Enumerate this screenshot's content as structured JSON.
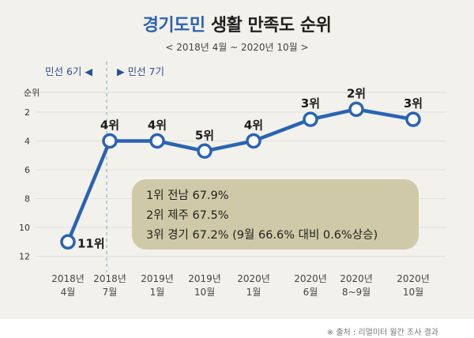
{
  "title": {
    "highlight": "경기도민",
    "rest": "생활 만족도 순위"
  },
  "subtitle": "< 2018년  4월 ~ 2020년  10월 >",
  "eras": {
    "left": "민선 6기 ◀",
    "right": "▶ 민선 7기"
  },
  "note": [
    "1위  전남  67.9%",
    "2위  제주  67.5%",
    "3위  경기  67.2%  (9월 66.6% 대비 0.6%상승)"
  ],
  "source": "※ 출처 : 리얼미터 월간 조사 결과",
  "chart_data": {
    "type": "line",
    "ylabel": "순위",
    "y_ticks": [
      2,
      4,
      6,
      8,
      10,
      12
    ],
    "ylim": [
      1,
      12.5
    ],
    "y_inverted": true,
    "grid": true,
    "categories": [
      "2018년\n4월",
      "2018년\n7월",
      "2019년\n1월",
      "2019년\n10월",
      "2020년\n1월",
      "2020년\n6월",
      "2020년\n8~9월",
      "2020년\n10월"
    ],
    "values": [
      11,
      4,
      4,
      4.7,
      4,
      2.5,
      1.8,
      2.5
    ],
    "data_labels": [
      "11위",
      "4위",
      "4위",
      "5위",
      "4위",
      "3위",
      "2위",
      "3위"
    ],
    "line_color": "#2a63b3"
  }
}
